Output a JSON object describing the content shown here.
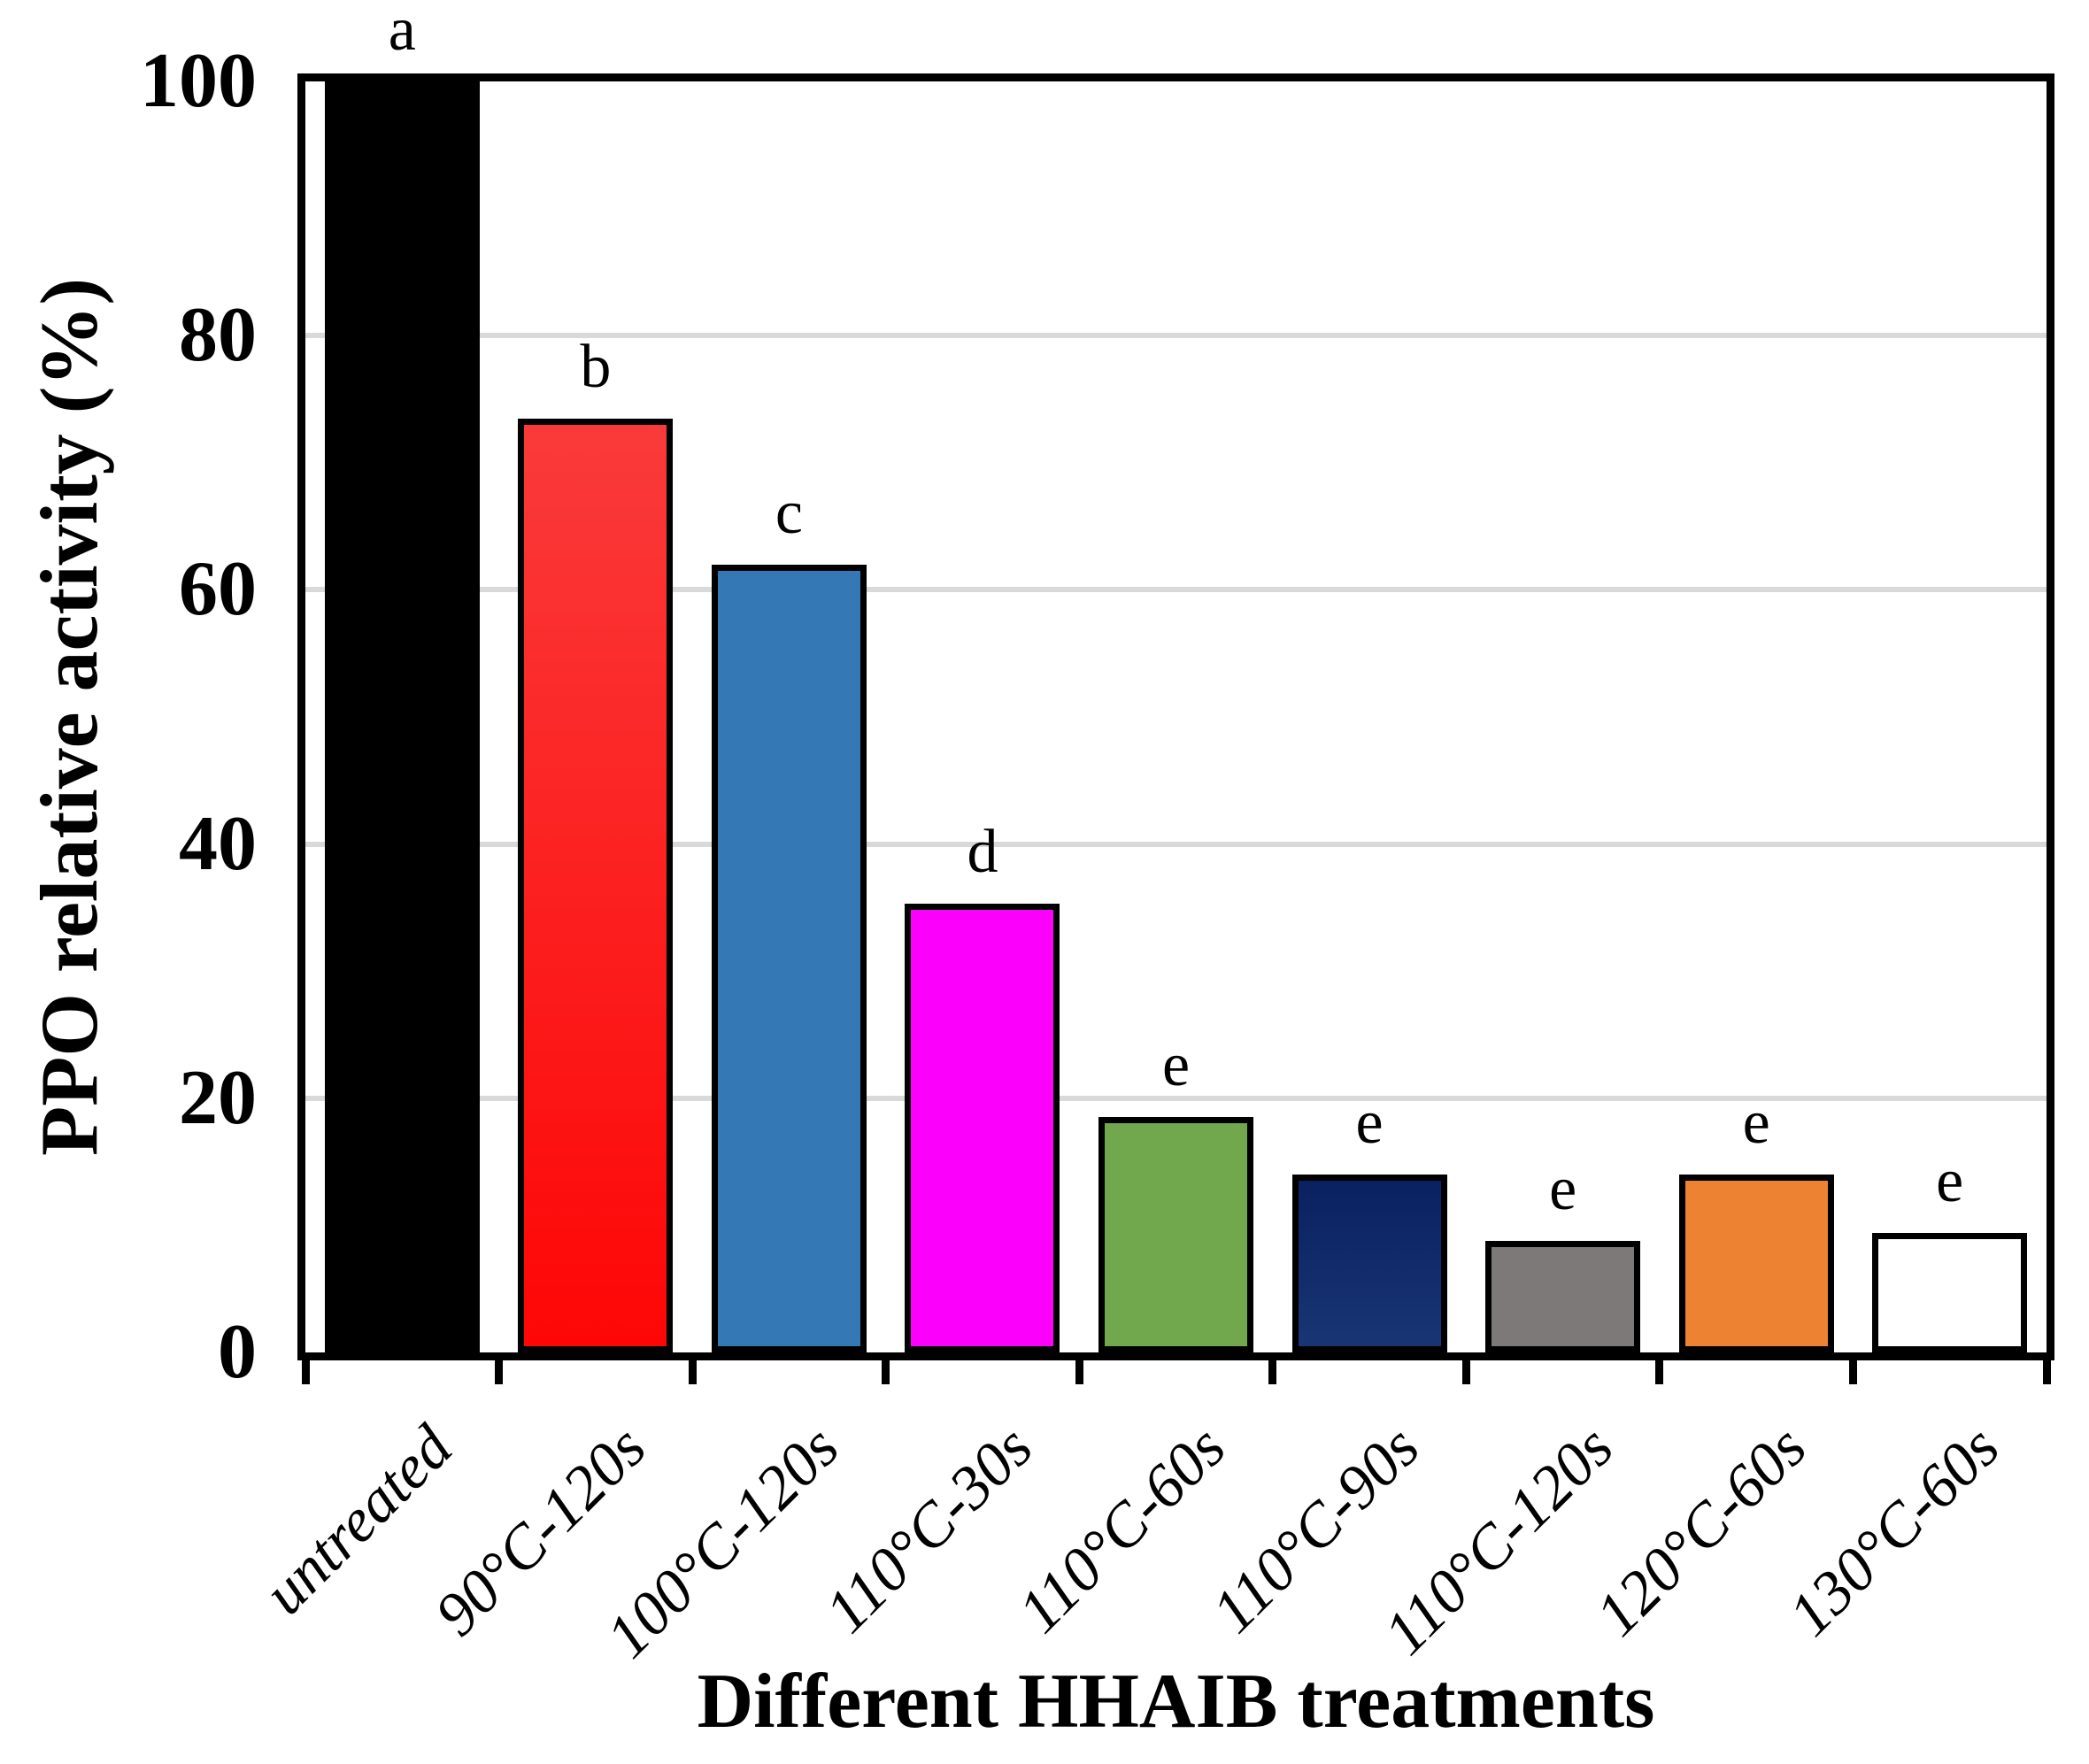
{
  "chart_data": {
    "type": "bar",
    "title": "",
    "xlabel": "Different HHAIB treatments",
    "ylabel": "PPO relative activity (%)",
    "ylim": [
      0,
      100
    ],
    "yticks": [
      0,
      20,
      40,
      60,
      80,
      100
    ],
    "grid": "horizontal gridlines every 20, light gray, drawn behind bars; full black frame box",
    "gridline_color": "#d9d9d9",
    "frame_color": "#000000",
    "bar_border_color": "#000000",
    "categories": [
      "untreated",
      "90°C-120s",
      "100°C-120s",
      "110°C-30s",
      "110°C-60s",
      "110°C-90s",
      "110°C-120s",
      "120°C-60s",
      "130°C-60s"
    ],
    "values": [
      100,
      73.5,
      62,
      35.3,
      18.5,
      14,
      8.8,
      14,
      9.4
    ],
    "sig_letters": [
      "a",
      "b",
      "c",
      "d",
      "e",
      "e",
      "e",
      "e",
      "e"
    ],
    "bar_fills": [
      {
        "from": "#000000",
        "to": "#000000"
      },
      {
        "from": "#fa3a3a",
        "to": "#fe0606"
      },
      {
        "from": "#3478b6",
        "to": "#3478b6"
      },
      {
        "from": "#fb00fb",
        "to": "#fb00fb"
      },
      {
        "from": "#71a74d",
        "to": "#71a74d"
      },
      {
        "from": "#0a2161",
        "to": "#193574"
      },
      {
        "from": "#7d7979",
        "to": "#7d7979"
      },
      {
        "from": "#ed8233",
        "to": "#ed8233"
      },
      {
        "from": "#ffffff",
        "to": "#ffffff"
      }
    ]
  }
}
